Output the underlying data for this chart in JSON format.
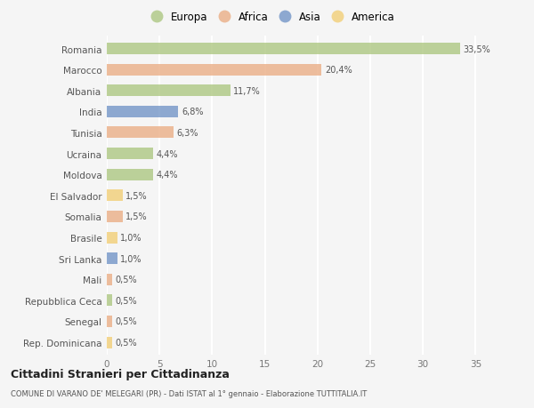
{
  "categories": [
    "Romania",
    "Marocco",
    "Albania",
    "India",
    "Tunisia",
    "Ucraina",
    "Moldova",
    "El Salvador",
    "Somalia",
    "Brasile",
    "Sri Lanka",
    "Mali",
    "Repubblica Ceca",
    "Senegal",
    "Rep. Dominicana"
  ],
  "values": [
    33.5,
    20.4,
    11.7,
    6.8,
    6.3,
    4.4,
    4.4,
    1.5,
    1.5,
    1.0,
    1.0,
    0.5,
    0.5,
    0.5,
    0.5
  ],
  "labels": [
    "33,5%",
    "20,4%",
    "11,7%",
    "6,8%",
    "6,3%",
    "4,4%",
    "4,4%",
    "1,5%",
    "1,5%",
    "1,0%",
    "1,0%",
    "0,5%",
    "0,5%",
    "0,5%",
    "0,5%"
  ],
  "colors": [
    "#a8c47a",
    "#e9a97e",
    "#a8c47a",
    "#6b8fc4",
    "#e9a97e",
    "#a8c47a",
    "#a8c47a",
    "#f2cc6e",
    "#e9a97e",
    "#f2cc6e",
    "#6b8fc4",
    "#e9a97e",
    "#a8c47a",
    "#e9a97e",
    "#f2cc6e"
  ],
  "legend_labels": [
    "Europa",
    "Africa",
    "Asia",
    "America"
  ],
  "legend_colors": [
    "#a8c47a",
    "#e9a97e",
    "#6b8fc4",
    "#f2cc6e"
  ],
  "title": "Cittadini Stranieri per Cittadinanza",
  "subtitle": "COMUNE DI VARANO DE' MELEGARI (PR) - Dati ISTAT al 1° gennaio - Elaborazione TUTTITALIA.IT",
  "xlim": [
    0,
    37
  ],
  "xticks": [
    0,
    5,
    10,
    15,
    20,
    25,
    30,
    35
  ],
  "background_color": "#f5f5f5",
  "grid_color": "#ffffff",
  "bar_height": 0.55,
  "bar_alpha": 0.75
}
